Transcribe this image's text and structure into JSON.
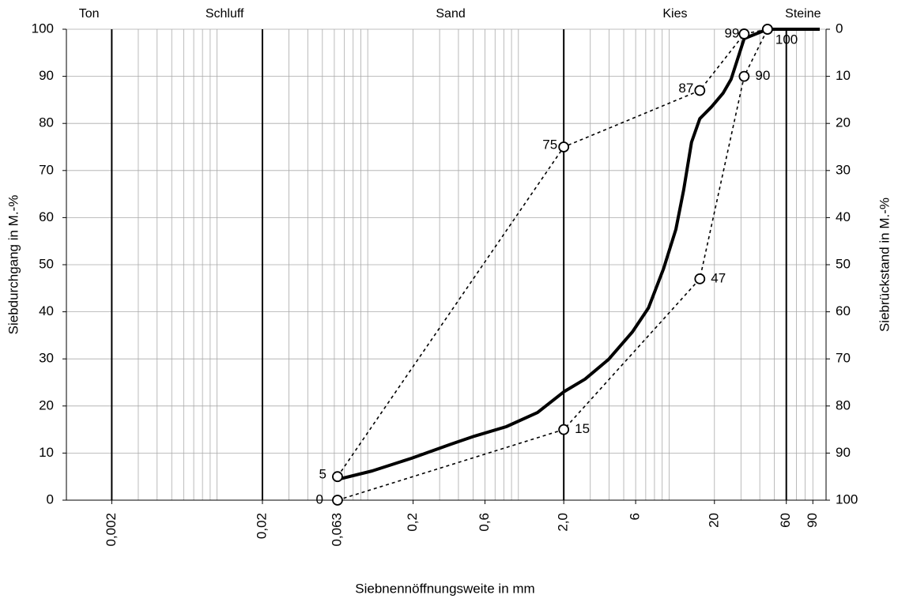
{
  "chart_data": {
    "type": "line",
    "xscale": "log",
    "xlabel": "Siebnennöffnungsweite in mm",
    "ylabel": "Siebdurchgang in M.-%",
    "y2label": "Siebrückstand in M.-%",
    "xlim": [
      0.001,
      100
    ],
    "ylim": [
      0,
      100
    ],
    "y2lim": [
      100,
      0
    ],
    "xticks": [
      {
        "value": 0.002,
        "label": "0,002"
      },
      {
        "value": 0.02,
        "label": "0,02"
      },
      {
        "value": 0.063,
        "label": "0,063"
      },
      {
        "value": 0.2,
        "label": "0,2"
      },
      {
        "value": 0.6,
        "label": "0,6"
      },
      {
        "value": 2,
        "label": "2,0"
      },
      6,
      20,
      60,
      90
    ],
    "yticks": [
      0,
      10,
      20,
      30,
      40,
      50,
      60,
      70,
      80,
      90,
      100
    ],
    "y2ticks": [
      0,
      10,
      20,
      30,
      40,
      50,
      60,
      70,
      80,
      90,
      100
    ],
    "grid": true,
    "minor_grid": true,
    "boundaries": [
      0.002,
      0.02,
      2,
      60
    ],
    "zones": [
      {
        "name": "Ton",
        "range": [
          0.001,
          0.002
        ]
      },
      {
        "name": "Schluff",
        "range": [
          0.002,
          0.063
        ]
      },
      {
        "name": "Sand",
        "range": [
          0.063,
          2
        ]
      },
      {
        "name": "Kies",
        "range": [
          2,
          60
        ]
      },
      {
        "name": "Steine",
        "range": [
          60,
          100
        ]
      }
    ],
    "series": [
      {
        "color": "#000000",
        "style": "solid",
        "markers": false,
        "x": [
          0.063,
          0.107,
          0.195,
          0.357,
          0.512,
          0.83,
          1.34,
          2,
          2.77,
          3.97,
          5.7,
          7.3,
          9.2,
          11.1,
          12.5,
          14.1,
          16,
          19.1,
          22.8,
          25.8,
          31.5,
          45,
          100
        ],
        "values": [
          4.4,
          6.2,
          8.9,
          11.9,
          13.6,
          15.6,
          18.6,
          23,
          25.7,
          29.9,
          35.7,
          40.8,
          49.2,
          57.5,
          65.9,
          76,
          81,
          83.5,
          86.4,
          89.4,
          98,
          100,
          100
        ]
      },
      {
        "color": "#000000",
        "style": "dashed",
        "markers": true,
        "x": [
          0.063,
          2,
          16,
          31.5,
          45
        ],
        "values": [
          5,
          75,
          87,
          99,
          100
        ]
      },
      {
        "color": "#000000",
        "style": "dashed",
        "markers": true,
        "x": [
          0.063,
          2,
          16,
          31.5,
          45
        ],
        "values": [
          0,
          15,
          47,
          90,
          100
        ]
      }
    ]
  }
}
